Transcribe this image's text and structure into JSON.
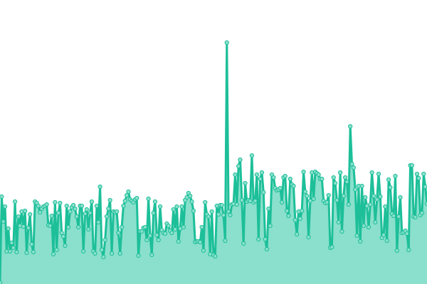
{
  "chart_data": {
    "type": "area",
    "title": "",
    "xlabel": "",
    "ylabel": "",
    "grid": false,
    "axes_visible": false,
    "ylim": [
      0,
      400
    ],
    "colors": {
      "line": "#1dbf99",
      "fill": "#8ae0cc",
      "marker_fill": "#8ae0cc",
      "marker_stroke": "#1dbf99"
    },
    "values": [
      2,
      123,
      88,
      109,
      46,
      78,
      46,
      58,
      51,
      116,
      45,
      95,
      82,
      102,
      81,
      103,
      44,
      79,
      98,
      56,
      45,
      116,
      114,
      110,
      101,
      106,
      109,
      110,
      112,
      83,
      82,
      96,
      42,
      115,
      48,
      100,
      114,
      72,
      67,
      54,
      110,
      80,
      102,
      108,
      111,
      106,
      95,
      80,
      110,
      110,
      46,
      99,
      105,
      77,
      100,
      116,
      46,
      43,
      110,
      87,
      137,
      48,
      38,
      62,
      95,
      106,
      118,
      43,
      102,
      101,
      102,
      72,
      43,
      80,
      110,
      117,
      125,
      130,
      119,
      117,
      115,
      119,
      121,
      40,
      74,
      74,
      79,
      80,
      62,
      120,
      68,
      41,
      100,
      116,
      69,
      62,
      109,
      76,
      72,
      71,
      85,
      82,
      75,
      72,
      105,
      77,
      109,
      60,
      78,
      109,
      80,
      118,
      122,
      128,
      124,
      116,
      103,
      59,
      60,
      60,
      59,
      80,
      47,
      115,
      98,
      95,
      42,
      102,
      41,
      39,
      110,
      98,
      111,
      111,
      97,
      61,
      340,
      102,
      97,
      112,
      113,
      154,
      112,
      166,
      175,
      118,
      57,
      142,
      116,
      118,
      117,
      181,
      115,
      117,
      154,
      63,
      148,
      157,
      129,
      63,
      49,
      106,
      82,
      154,
      150,
      135,
      132,
      133,
      135,
      115,
      150,
      152,
      103,
      96,
      148,
      140,
      138,
      90,
      70,
      102,
      92,
      103,
      158,
      130,
      124,
      66,
      117,
      157,
      120,
      158,
      156,
      154,
      148,
      148,
      117,
      114,
      115,
      125,
      51,
      52,
      150,
      142,
      118,
      87,
      157,
      74,
      124,
      150,
      144,
      112,
      222,
      169,
      164,
      133,
      68,
      138,
      60,
      138,
      82,
      122,
      110,
      80,
      112,
      157,
      124,
      87,
      119,
      155,
      123,
      65,
      69,
      109,
      61,
      147,
      136,
      99,
      96,
      152,
      47,
      95,
      122,
      72,
      73,
      75,
      71,
      48,
      167,
      167,
      95,
      94,
      155,
      149,
      97,
      100,
      155,
      137,
      113
    ]
  }
}
